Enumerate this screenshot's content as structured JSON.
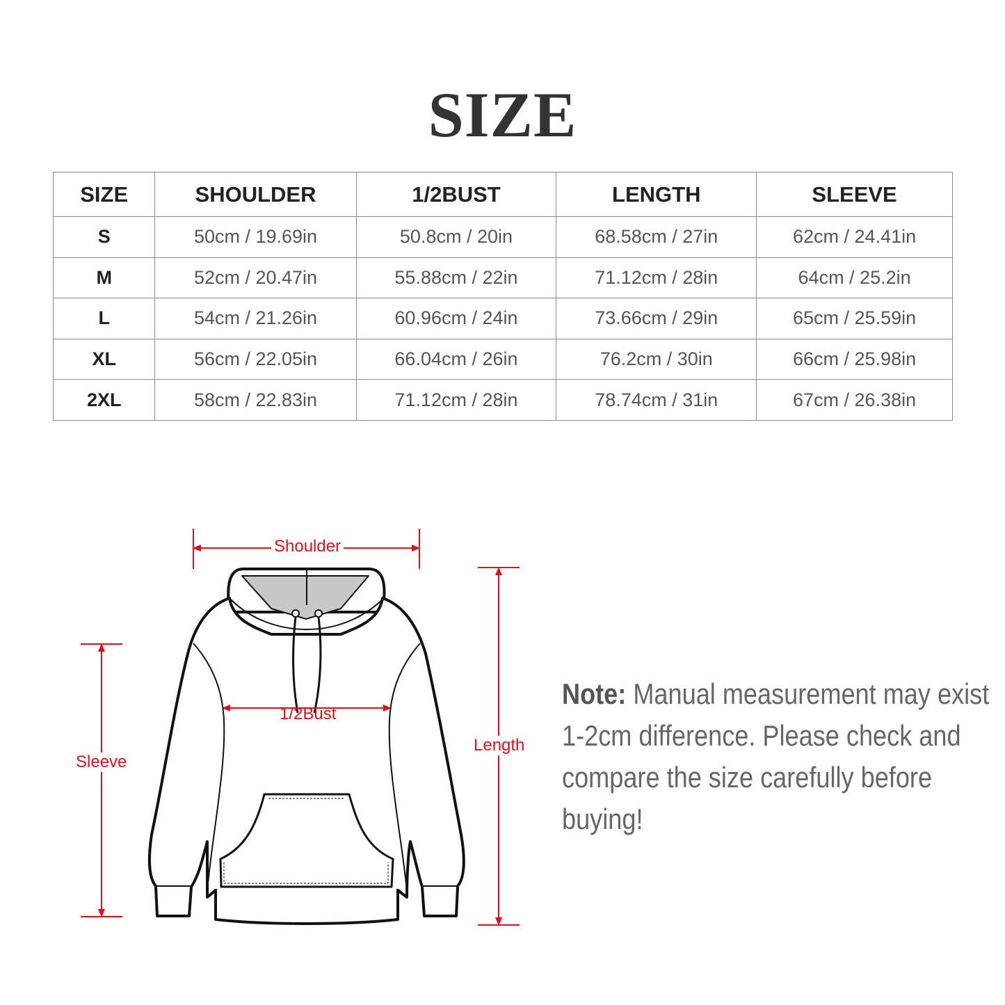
{
  "title": "SIZE",
  "table": {
    "headers": [
      "SIZE",
      "SHOULDER",
      "1/2BUST",
      "LENGTH",
      "SLEEVE"
    ],
    "rows": [
      [
        "S",
        "50cm / 19.69in",
        "50.8cm / 20in",
        "68.58cm / 27in",
        "62cm / 24.41in"
      ],
      [
        "M",
        "52cm / 20.47in",
        "55.88cm / 22in",
        "71.12cm / 28in",
        "64cm / 25.2in"
      ],
      [
        "L",
        "54cm / 21.26in",
        "60.96cm / 24in",
        "73.66cm / 29in",
        "65cm / 25.59in"
      ],
      [
        "XL",
        "56cm / 22.05in",
        "66.04cm / 26in",
        "76.2cm / 30in",
        "66cm / 25.98in"
      ],
      [
        "2XL",
        "58cm / 22.83in",
        "71.12cm / 28in",
        "78.74cm / 31in",
        "67cm / 26.38in"
      ]
    ]
  },
  "diagram": {
    "shoulder": "Shoulder",
    "bust": "1/2Bust",
    "sleeve": "Sleeve",
    "length": "Length",
    "accent_color": "#e0101a"
  },
  "note": {
    "label": "Note:",
    "text": " Manual measurement may exist 1-2cm difference. Please check and compare the size carefully before buying!"
  }
}
